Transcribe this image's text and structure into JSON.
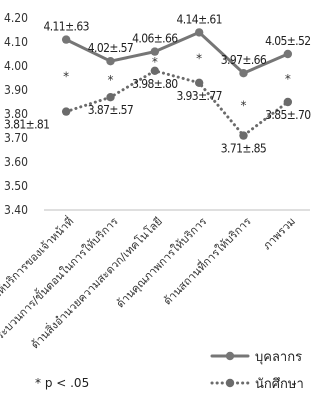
{
  "chart_data": {
    "type": "line",
    "ylim": [
      3.4,
      4.2
    ],
    "yticks": [
      "4.20",
      "4.10",
      "4.00",
      "3.90",
      "3.80",
      "3.70",
      "3.60",
      "3.50",
      "3.40"
    ],
    "categories": [
      "ด้านการให้บริการของเจ้าหน้าที่",
      "ด้านกระบวนการ/ขั้นตอนในการให้บริการ",
      "ด้านสิ่งอำนวยความสะดวก/เทคโนโลยี",
      "ด้านคุณภาพการให้บริการ",
      "ด้านสถานที่การให้บริการ",
      "ภาพรวม"
    ],
    "series": [
      {
        "name": "บุคลากร",
        "values": [
          4.11,
          4.02,
          4.06,
          4.14,
          3.97,
          4.05
        ],
        "labels": [
          "4.11±.63",
          "4.02±.57",
          "4.06±.66",
          "4.14±.61",
          "3.97±.66",
          "4.05±.52"
        ],
        "color": "#767676",
        "style": "solid"
      },
      {
        "name": "นักศึกษา",
        "values": [
          3.81,
          3.87,
          3.98,
          3.93,
          3.71,
          3.85
        ],
        "labels": [
          "3.81±.81",
          "3.87±.57",
          "3.98±.80",
          "3.93±.77",
          "3.71±.85",
          "3.85±.70"
        ],
        "color": "#6b6b6b",
        "style": "dotted"
      }
    ],
    "significance_marks": [
      "*",
      "*",
      "*",
      "*",
      "*",
      "*"
    ],
    "grid": false,
    "legend_position": "bottom-right",
    "note": "* p < .05"
  }
}
